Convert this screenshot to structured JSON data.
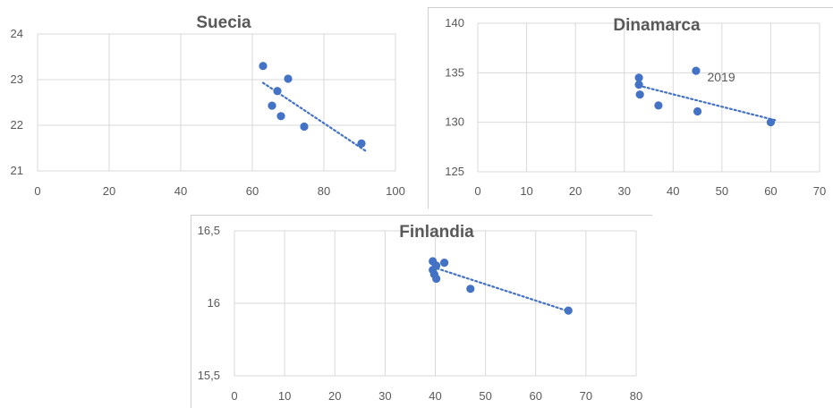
{
  "chart_data": [
    {
      "type": "scatter",
      "title": "Suecia",
      "xlim": [
        0,
        100
      ],
      "ylim": [
        21,
        24
      ],
      "xticks": [
        0,
        20,
        40,
        60,
        80,
        100
      ],
      "yticks": [
        21,
        22,
        23,
        24
      ],
      "xtick_labels": [
        "0",
        "20",
        "40",
        "60",
        "80",
        "100"
      ],
      "ytick_labels": [
        "21",
        "22",
        "23",
        "24"
      ],
      "grid": true,
      "trendline": "linear",
      "points": [
        {
          "x": 63,
          "y": 23.3
        },
        {
          "x": 67,
          "y": 22.75
        },
        {
          "x": 70,
          "y": 23.02
        },
        {
          "x": 65.5,
          "y": 22.43
        },
        {
          "x": 68,
          "y": 22.2
        },
        {
          "x": 74.5,
          "y": 21.97
        },
        {
          "x": 90.5,
          "y": 21.6
        }
      ],
      "trend": [
        {
          "x": 63,
          "y": 22.93
        },
        {
          "x": 92,
          "y": 21.42
        }
      ],
      "marker_color": "#4472C4"
    },
    {
      "type": "scatter",
      "title": "Dinamarca",
      "xlim": [
        0,
        70
      ],
      "ylim": [
        125,
        140
      ],
      "xticks": [
        0,
        10,
        20,
        30,
        40,
        50,
        60,
        70
      ],
      "yticks": [
        125,
        130,
        135,
        140
      ],
      "xtick_labels": [
        "0",
        "10",
        "20",
        "30",
        "40",
        "50",
        "60",
        "70"
      ],
      "ytick_labels": [
        "125",
        "130",
        "135",
        "140"
      ],
      "grid": true,
      "trendline": "linear",
      "points": [
        {
          "x": 33,
          "y": 134.5
        },
        {
          "x": 33,
          "y": 133.8
        },
        {
          "x": 33.2,
          "y": 132.8
        },
        {
          "x": 37,
          "y": 131.7
        },
        {
          "x": 44.7,
          "y": 135.2
        },
        {
          "x": 45,
          "y": 131.1
        },
        {
          "x": 60,
          "y": 130
        }
      ],
      "trend": [
        {
          "x": 33,
          "y": 133.7
        },
        {
          "x": 61,
          "y": 130.2
        }
      ],
      "annotations": [
        {
          "text": "2019",
          "x": 47,
          "y": 134.6
        }
      ],
      "marker_color": "#4472C4"
    },
    {
      "type": "scatter",
      "title": "Finlandia",
      "xlim": [
        0,
        80
      ],
      "ylim": [
        15.5,
        16.5
      ],
      "xticks": [
        0,
        10,
        20,
        30,
        40,
        50,
        60,
        70,
        80
      ],
      "yticks": [
        15.5,
        16,
        16.5
      ],
      "xtick_labels": [
        "0",
        "10",
        "20",
        "30",
        "40",
        "50",
        "60",
        "70",
        "80"
      ],
      "ytick_labels": [
        "15,5",
        "16",
        "16,5"
      ],
      "grid": true,
      "trendline": "linear",
      "points": [
        {
          "x": 39.5,
          "y": 16.29
        },
        {
          "x": 40.2,
          "y": 16.26
        },
        {
          "x": 41.8,
          "y": 16.28
        },
        {
          "x": 39.5,
          "y": 16.23
        },
        {
          "x": 39.8,
          "y": 16.2
        },
        {
          "x": 40.2,
          "y": 16.17
        },
        {
          "x": 47,
          "y": 16.1
        },
        {
          "x": 66.5,
          "y": 15.95
        }
      ],
      "trend": [
        {
          "x": 39.5,
          "y": 16.25
        },
        {
          "x": 67,
          "y": 15.94
        }
      ],
      "marker_color": "#4472C4"
    }
  ]
}
